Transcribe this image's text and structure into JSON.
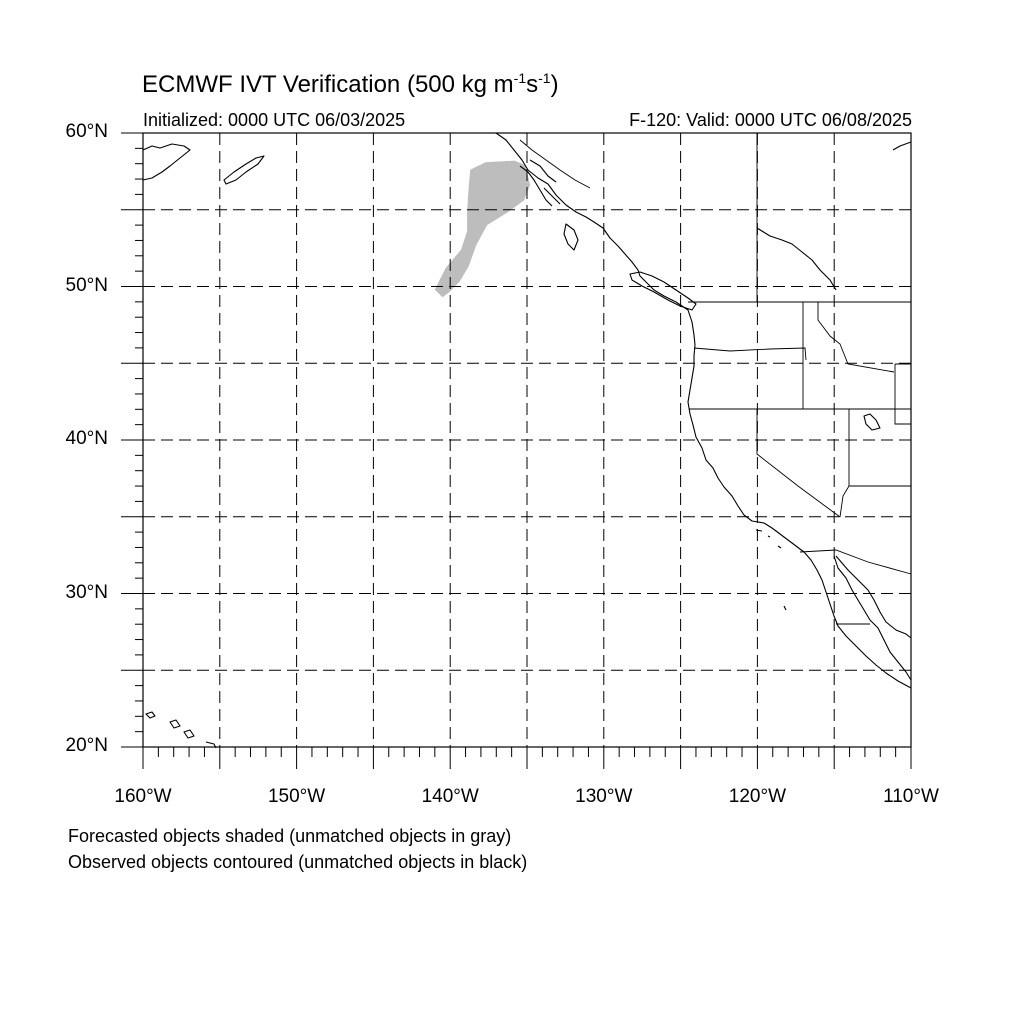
{
  "title": {
    "text_main": "ECMWF IVT Verification (500 kg m",
    "sup1": "-1",
    "text_mid": "s",
    "sup2": "-1",
    "text_end": ")"
  },
  "subtitle_left": "Initialized: 0000 UTC 06/03/2025",
  "subtitle_right": "F-120: Valid: 0000 UTC 06/08/2025",
  "map_extent": {
    "lon_min": -160,
    "lon_max": -110,
    "lat_min": 20,
    "lat_max": 60
  },
  "lat_labels": [
    "60°N",
    "50°N",
    "40°N",
    "30°N",
    "20°N"
  ],
  "lon_labels": [
    "160°W",
    "150°W",
    "140°W",
    "130°W",
    "120°W",
    "110°W"
  ],
  "grid_spacing_deg": 5,
  "colors": {
    "forecast_unmatched": "#bdbdbd",
    "coastline": "#000000",
    "grid": "#000000"
  },
  "forecast_object": {
    "status": "unmatched",
    "outline_lonlat": [
      [
        -140.5,
        49.3
      ],
      [
        -141.0,
        49.8
      ],
      [
        -140.3,
        51.2
      ],
      [
        -139.3,
        52.4
      ],
      [
        -138.9,
        53.6
      ],
      [
        -138.9,
        54.9
      ],
      [
        -138.8,
        56.4
      ],
      [
        -138.7,
        57.6
      ],
      [
        -137.7,
        58.1
      ],
      [
        -135.8,
        58.2
      ],
      [
        -135.1,
        57.9
      ],
      [
        -134.8,
        56.6
      ],
      [
        -135.2,
        55.6
      ],
      [
        -136.3,
        54.8
      ],
      [
        -137.6,
        54.0
      ],
      [
        -138.3,
        52.7
      ],
      [
        -138.8,
        51.3
      ],
      [
        -139.4,
        50.3
      ],
      [
        -140.1,
        49.6
      ]
    ]
  },
  "notes": [
    "Forecasted objects shaded (unmatched objects in gray)",
    "Observed objects contoured (unmatched objects in black)"
  ]
}
